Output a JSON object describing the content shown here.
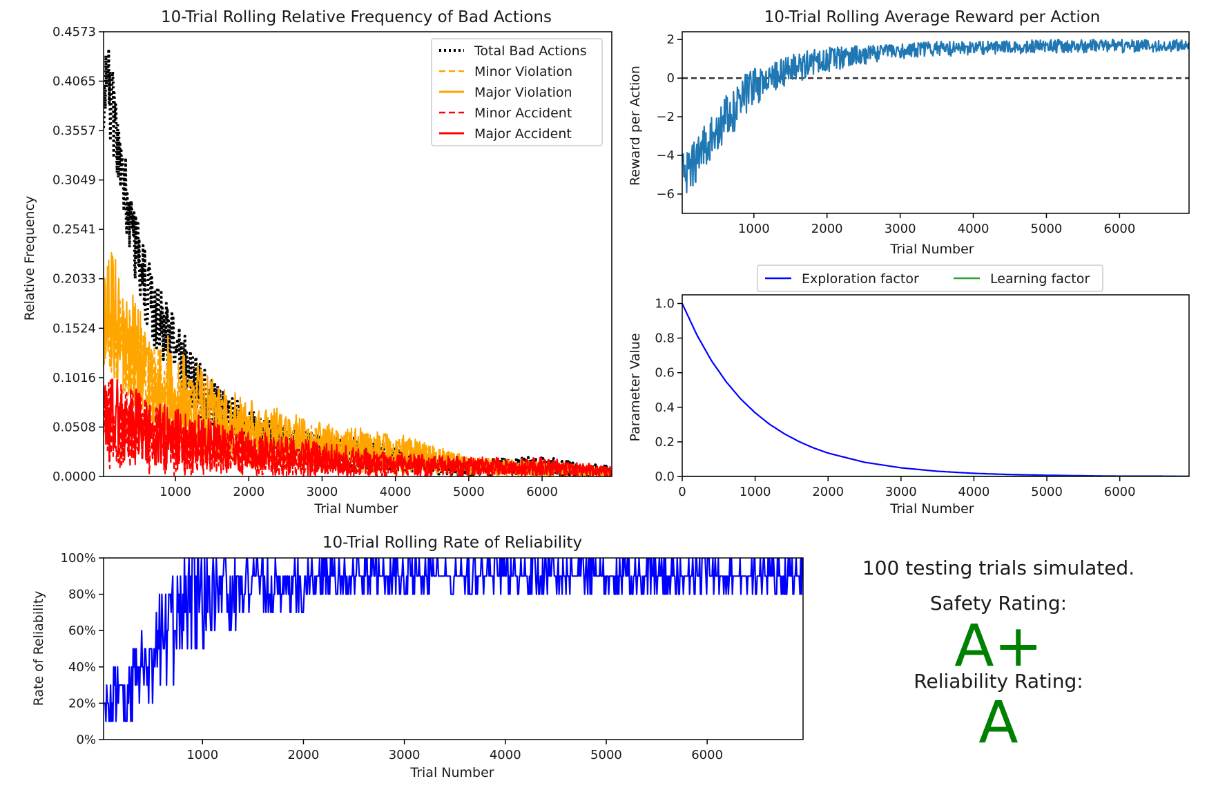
{
  "chart_data": [
    {
      "type": "line",
      "title": "10-Trial Rolling Relative Frequency of Bad Actions",
      "xlabel": "Trial Number",
      "ylabel": "Relative Frequency",
      "xlim": [
        20,
        6950
      ],
      "ylim": [
        0,
        0.4573
      ],
      "xticks": [
        1000,
        2000,
        3000,
        4000,
        5000,
        6000
      ],
      "yticks": [
        "0.0000",
        "0.0508",
        "0.1016",
        "0.1524",
        "0.2033",
        "0.2541",
        "0.3049",
        "0.3557",
        "0.4065",
        "0.4573"
      ],
      "grid": false,
      "legend": "top-right",
      "series": [
        {
          "name": "Total Bad Actions",
          "color": "#000000",
          "style": "dotted",
          "envelope": {
            "x": [
              20,
              60,
              100,
              150,
              200,
              300,
              400,
              500,
              700,
              900,
              1100,
              1300,
              1500,
              1700,
              2000,
              2300,
              2600,
              3000,
              3400,
              3800,
              4200,
              4600,
              5000,
              5500,
              6000,
              6500,
              6950
            ],
            "low": [
              0.33,
              0.36,
              0.35,
              0.32,
              0.3,
              0.26,
              0.22,
              0.18,
              0.13,
              0.1,
              0.08,
              0.06,
              0.045,
              0.035,
              0.025,
              0.018,
              0.012,
              0.008,
              0.005,
              0.004,
              0.003,
              0.002,
              0.001,
              0.001,
              0.0,
              0.0,
              0.0
            ],
            "high": [
              0.38,
              0.45,
              0.44,
              0.42,
              0.38,
              0.34,
              0.3,
              0.26,
              0.21,
              0.18,
              0.15,
              0.12,
              0.1,
              0.085,
              0.07,
              0.06,
              0.05,
              0.045,
              0.04,
              0.035,
              0.025,
              0.02,
              0.015,
              0.02,
              0.02,
              0.015,
              0.01
            ]
          }
        },
        {
          "name": "Minor Violation",
          "color": "#ffa500",
          "style": "dashed",
          "envelope": {
            "x": [
              20,
              100,
              300,
              600,
              1000,
              1500,
              2000,
              3000,
              4000,
              5000,
              6000,
              6950
            ],
            "low": [
              0.12,
              0.1,
              0.08,
              0.05,
              0.03,
              0.015,
              0.008,
              0.004,
              0.002,
              0.001,
              0.0,
              0.0
            ],
            "high": [
              0.19,
              0.2,
              0.18,
              0.15,
              0.12,
              0.09,
              0.07,
              0.05,
              0.04,
              0.02,
              0.015,
              0.01
            ]
          }
        },
        {
          "name": "Major Violation",
          "color": "#ffa500",
          "style": "solid",
          "envelope": {
            "x": [
              20,
              100,
              300,
              600,
              1000,
              1500,
              2000,
              3000,
              4000,
              5000,
              6000,
              6950
            ],
            "low": [
              0.11,
              0.1,
              0.08,
              0.05,
              0.03,
              0.015,
              0.008,
              0.004,
              0.002,
              0.001,
              0.0,
              0.0
            ],
            "high": [
              0.2,
              0.24,
              0.2,
              0.17,
              0.14,
              0.1,
              0.08,
              0.055,
              0.045,
              0.02,
              0.015,
              0.01
            ]
          }
        },
        {
          "name": "Minor Accident",
          "color": "#ff0000",
          "style": "dashed",
          "envelope": {
            "x": [
              20,
              200,
              600,
              1000,
              2000,
              3000,
              4000,
              5000,
              6000,
              6950
            ],
            "low": [
              0.0,
              0.0,
              0.0,
              0.0,
              0.0,
              0.0,
              0.0,
              0.0,
              0.0,
              0.0
            ],
            "high": [
              0.1,
              0.1,
              0.08,
              0.06,
              0.04,
              0.025,
              0.02,
              0.015,
              0.015,
              0.01
            ]
          }
        },
        {
          "name": "Major Accident",
          "color": "#ff0000",
          "style": "solid",
          "envelope": {
            "x": [
              20,
              200,
              600,
              1000,
              2000,
              3000,
              4000,
              5000,
              6000,
              6950
            ],
            "low": [
              0.02,
              0.015,
              0.01,
              0.005,
              0.002,
              0.0,
              0.0,
              0.0,
              0.0,
              0.0
            ],
            "high": [
              0.11,
              0.1,
              0.085,
              0.07,
              0.05,
              0.035,
              0.025,
              0.02,
              0.02,
              0.01
            ]
          }
        }
      ]
    },
    {
      "type": "line",
      "title": "10-Trial Rolling Average Reward per Action",
      "xlabel": "Trial Number",
      "ylabel": "Reward per Action",
      "xlim": [
        20,
        6950
      ],
      "ylim": [
        -7.0,
        2.4
      ],
      "xticks": [
        1000,
        2000,
        3000,
        4000,
        5000,
        6000
      ],
      "yticks": [
        -6,
        -4,
        -2,
        0,
        2
      ],
      "reference_line": {
        "y": 0,
        "color": "#333333",
        "style": "dashed"
      },
      "series": [
        {
          "color": "#1f77b4",
          "envelope": {
            "x": [
              20,
              200,
              400,
              600,
              800,
              1000,
              1200,
              1500,
              1800,
              2000,
              2500,
              3000,
              3500,
              4000,
              5000,
              6000,
              6950
            ],
            "low": [
              -6.5,
              -5.5,
              -4.5,
              -3.5,
              -2.5,
              -1.5,
              -0.8,
              -0.3,
              0.0,
              0.3,
              0.7,
              1.0,
              1.1,
              1.2,
              1.3,
              1.3,
              1.4
            ],
            "high": [
              -3.5,
              -3.0,
              -2.0,
              -1.0,
              0.0,
              0.5,
              0.8,
              1.2,
              1.5,
              1.6,
              1.7,
              1.8,
              1.9,
              1.9,
              2.0,
              2.0,
              2.0
            ]
          }
        }
      ]
    },
    {
      "type": "line",
      "xlabel": "Trial Number",
      "ylabel": "Parameter Value",
      "xlim": [
        0,
        6950
      ],
      "ylim": [
        0.0,
        1.05
      ],
      "xticks": [
        0,
        1000,
        2000,
        3000,
        4000,
        5000,
        6000
      ],
      "yticks": [
        "0.0",
        "0.2",
        "0.4",
        "0.6",
        "0.8",
        "1.0"
      ],
      "legend": "top-center",
      "series": [
        {
          "name": "Exploration factor",
          "color": "#0000ff",
          "x": [
            0,
            200,
            400,
            600,
            800,
            1000,
            1200,
            1400,
            1600,
            1800,
            2000,
            2500,
            3000,
            3500,
            4000,
            4500,
            5000,
            5500,
            6000,
            6500,
            6950
          ],
          "values": [
            1.0,
            0.819,
            0.67,
            0.549,
            0.449,
            0.368,
            0.301,
            0.247,
            0.202,
            0.165,
            0.135,
            0.082,
            0.05,
            0.03,
            0.018,
            0.011,
            0.007,
            0.004,
            0.002,
            0.002,
            0.001
          ]
        },
        {
          "name": "Learning factor",
          "color": "#2ca02c",
          "x": [
            0,
            6950
          ],
          "values": [
            0.0,
            0.0
          ]
        }
      ]
    },
    {
      "type": "line",
      "title": "10-Trial Rolling Rate of Reliability",
      "xlabel": "Trial Number",
      "ylabel": "Rate of Reliability",
      "xlim": [
        20,
        6950
      ],
      "ylim": [
        0,
        100
      ],
      "xticks": [
        1000,
        2000,
        3000,
        4000,
        5000,
        6000
      ],
      "yticks": [
        "0%",
        "20%",
        "40%",
        "60%",
        "80%",
        "100%"
      ],
      "series": [
        {
          "color": "#0000ff",
          "envelope": {
            "x": [
              20,
              200,
              400,
              600,
              800,
              1000,
              1300,
              1600,
              2000,
              2500,
              3000,
              4000,
              5000,
              6000,
              6950
            ],
            "low": [
              0,
              0,
              10,
              20,
              40,
              50,
              60,
              70,
              70,
              80,
              80,
              80,
              80,
              80,
              80
            ],
            "high": [
              40,
              40,
              60,
              80,
              100,
              100,
              100,
              100,
              100,
              100,
              100,
              100,
              100,
              100,
              100
            ]
          }
        }
      ]
    }
  ],
  "summary": {
    "trials_text": "100 testing trials simulated.",
    "safety_label": "Safety Rating:",
    "safety_grade": "A+",
    "reliability_label": "Reliability Rating:",
    "reliability_grade": "A",
    "grade_color": "#008000"
  }
}
